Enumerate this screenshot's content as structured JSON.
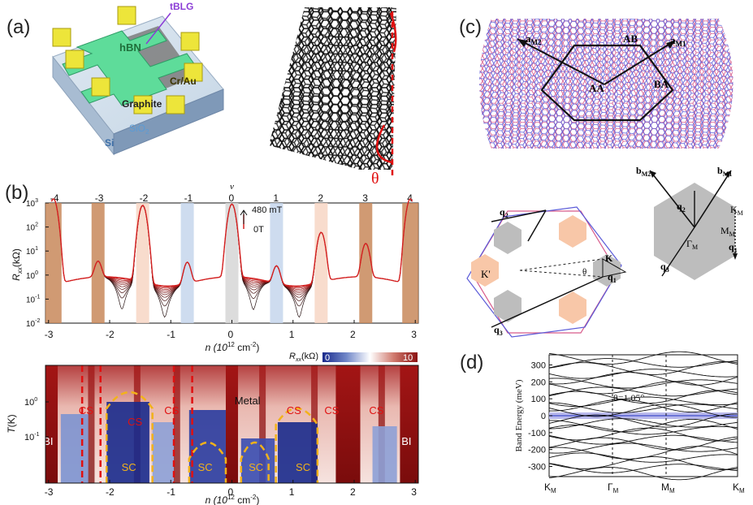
{
  "panels": {
    "a": "(a)",
    "b": "(b)",
    "c": "(c)",
    "d": "(d)"
  },
  "device": {
    "tbg": "tBLG",
    "hbn": "hBN",
    "contacts": "Cr/Au",
    "graphite": "Graphite",
    "sio2": "SiO",
    "sio2_sub": "2",
    "si": "Si"
  },
  "moire_angle": "θ",
  "rxx_plot": {
    "nu_symbol": "ν",
    "nu_ticks": [
      "-4",
      "-3",
      "-2",
      "-1",
      "0",
      "1",
      "2",
      "3",
      "4"
    ],
    "field_hi": "480 mT",
    "field_lo": "0T",
    "ylabel": "R",
    "ylabel_sub": "xx",
    "ylabel_unit": "(kΩ)",
    "y_ticks": [
      "10",
      "10",
      "10",
      "10",
      "10",
      "10"
    ],
    "y_exps": [
      "-2",
      "-1",
      "0",
      "1",
      "2",
      "3"
    ],
    "x_ticks": [
      "-3",
      "-2",
      "-1",
      "0",
      "1",
      "2",
      "3"
    ],
    "xlabel": "n (10",
    "xlabel_exp": "12",
    "xlabel_unit": " cm",
    "xlabel_exp2": "-2",
    "xlabel_end": ")"
  },
  "phase_map": {
    "cbar_label": "R",
    "cbar_sub": "xx",
    "cbar_unit": "(kΩ)",
    "cbar_min": "0",
    "cbar_max": "10",
    "ylabel": "T",
    "ylabel_unit": "(K)",
    "y_ticks": [
      "10",
      "10"
    ],
    "y_exps": [
      "0",
      "-1"
    ],
    "region_labels": [
      "BI",
      "CS",
      "SC",
      "CS",
      "CS",
      "SC",
      "Metal",
      "SC",
      "CS",
      "SC",
      "CS",
      "CS",
      "BI"
    ],
    "x_ticks": [
      "-3",
      "-2",
      "-1",
      "0",
      "1",
      "2",
      "3"
    ]
  },
  "lattice": {
    "a_m2": "a",
    "a_m2_sub": "M2",
    "a_m1": "a",
    "a_m1_sub": "M1",
    "ab": "AB",
    "aa": "AA",
    "ba": "BA"
  },
  "bz": {
    "q2": "q",
    "q2_sub": "2",
    "q1": "q",
    "q1_sub": "1",
    "q3": "q",
    "q3_sub": "3",
    "k": "K",
    "kp": "K'",
    "theta": "θ",
    "b_m2": "b",
    "b_m2_sub": "M2",
    "b_m1": "b",
    "b_m1_sub": "M1",
    "km": "K",
    "km_sub": "M",
    "mm": "M",
    "mm_sub": "M",
    "gamma": "Γ",
    "gamma_sub": "M"
  },
  "bands": {
    "ylabel": "Band Energy (meV)",
    "y_ticks": [
      "300",
      "200",
      "100",
      "0",
      "-100",
      "-200",
      "-300"
    ],
    "x_ticks": [
      "K",
      "Γ",
      "M",
      "K"
    ],
    "x_subs": [
      "M",
      "M",
      "M",
      "M"
    ],
    "angle_label": "θ=1.05°"
  },
  "colors": {
    "curve_red": "#d42020",
    "gap_orange": "#c8885a",
    "gap_blue": "#b9cde6",
    "map_red": "#8b1010",
    "map_blue": "#1a2a8c",
    "dashed_red": "#e01010",
    "dashed_gold": "#f2b21a",
    "flat_band": "#5560d0"
  }
}
